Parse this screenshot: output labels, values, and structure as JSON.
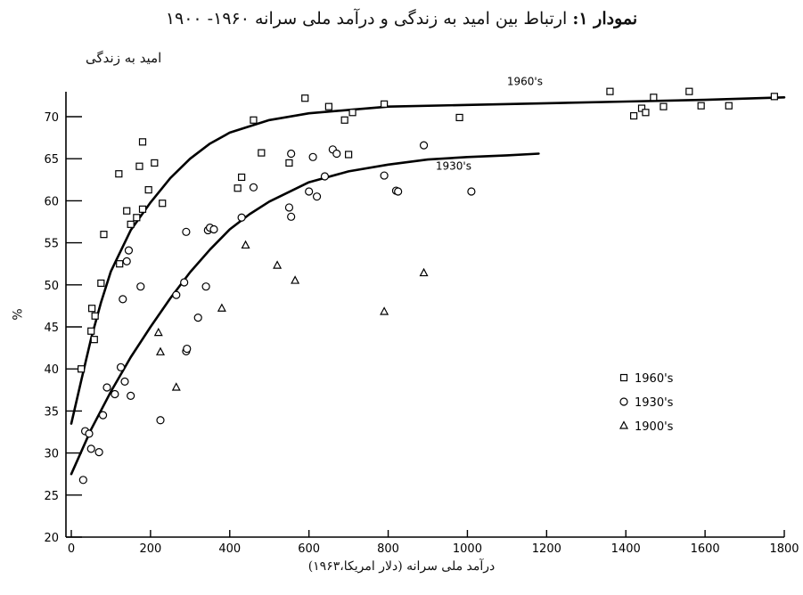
{
  "header": {
    "title_bold": "نمودار ۱:",
    "title_rest": " ارتباط بین امید به زندگی و درآمد ملی سرانه ۱۹۶۰- ۱۹۰۰"
  },
  "chart_data": {
    "type": "scatter",
    "ylabel": "امید به زندگی",
    "xlabel": "درآمد ملی سرانه (دلار امریکا،۱۹۶۳)",
    "yunit": "%",
    "xlim": [
      0,
      1800
    ],
    "ylim": [
      20,
      75
    ],
    "x_ticks": [
      0,
      200,
      400,
      600,
      800,
      1000,
      1200,
      1400,
      1600,
      1800
    ],
    "y_ticks": [
      20,
      25,
      30,
      35,
      40,
      45,
      50,
      55,
      60,
      65,
      70
    ],
    "legend_position": "right",
    "series": [
      {
        "name": "1960's",
        "marker": "square",
        "points": [
          [
            25,
            40
          ],
          [
            50,
            44.5
          ],
          [
            52,
            47.2
          ],
          [
            58,
            43.5
          ],
          [
            60,
            46.3
          ],
          [
            75,
            50.2
          ],
          [
            82,
            56
          ],
          [
            120,
            63.2
          ],
          [
            122,
            52.5
          ],
          [
            140,
            58.8
          ],
          [
            150,
            57.2
          ],
          [
            165,
            58
          ],
          [
            172,
            64.1
          ],
          [
            180,
            59
          ],
          [
            180,
            67
          ],
          [
            195,
            61.3
          ],
          [
            210,
            64.5
          ],
          [
            230,
            59.7
          ],
          [
            420,
            61.5
          ],
          [
            430,
            62.8
          ],
          [
            460,
            69.6
          ],
          [
            480,
            65.7
          ],
          [
            550,
            64.5
          ],
          [
            590,
            72.2
          ],
          [
            650,
            71.2
          ],
          [
            690,
            69.6
          ],
          [
            700,
            65.5
          ],
          [
            710,
            70.5
          ],
          [
            790,
            71.5
          ],
          [
            980,
            69.9
          ],
          [
            1360,
            73
          ],
          [
            1420,
            70.1
          ],
          [
            1440,
            71
          ],
          [
            1450,
            70.5
          ],
          [
            1470,
            72.3
          ],
          [
            1495,
            71.2
          ],
          [
            1560,
            73
          ],
          [
            1590,
            71.3
          ],
          [
            1660,
            71.3
          ],
          [
            1775,
            72.4
          ]
        ],
        "fit": [
          [
            0,
            33.5
          ],
          [
            25,
            38.6
          ],
          [
            50,
            43.6
          ],
          [
            75,
            47.9
          ],
          [
            100,
            51.6
          ],
          [
            150,
            56.5
          ],
          [
            200,
            59.8
          ],
          [
            250,
            62.7
          ],
          [
            300,
            65
          ],
          [
            350,
            66.8
          ],
          [
            400,
            68.1
          ],
          [
            500,
            69.6
          ],
          [
            600,
            70.4
          ],
          [
            700,
            70.8
          ],
          [
            800,
            71.2
          ],
          [
            1000,
            71.4
          ],
          [
            1200,
            71.6
          ],
          [
            1400,
            71.8
          ],
          [
            1600,
            72
          ],
          [
            1800,
            72.3
          ]
        ],
        "fit_label": "1960's"
      },
      {
        "name": "1930's",
        "marker": "circle",
        "points": [
          [
            30,
            26.8
          ],
          [
            35,
            32.6
          ],
          [
            45,
            32.3
          ],
          [
            50,
            30.5
          ],
          [
            70,
            30.1
          ],
          [
            80,
            34.5
          ],
          [
            90,
            37.8
          ],
          [
            110,
            37
          ],
          [
            125,
            40.2
          ],
          [
            130,
            48.3
          ],
          [
            135,
            38.5
          ],
          [
            140,
            52.8
          ],
          [
            145,
            54.1
          ],
          [
            150,
            36.8
          ],
          [
            175,
            49.8
          ],
          [
            225,
            33.9
          ],
          [
            265,
            48.8
          ],
          [
            285,
            50.3
          ],
          [
            290,
            56.3
          ],
          [
            290,
            42.1
          ],
          [
            292,
            42.4
          ],
          [
            320,
            46.1
          ],
          [
            340,
            49.8
          ],
          [
            345,
            56.5
          ],
          [
            350,
            56.8
          ],
          [
            360,
            56.6
          ],
          [
            430,
            58
          ],
          [
            460,
            61.6
          ],
          [
            550,
            59.2
          ],
          [
            555,
            58.1
          ],
          [
            555,
            65.6
          ],
          [
            600,
            61.1
          ],
          [
            610,
            65.2
          ],
          [
            620,
            60.5
          ],
          [
            640,
            62.9
          ],
          [
            660,
            66.1
          ],
          [
            670,
            65.6
          ],
          [
            790,
            63
          ],
          [
            820,
            61.2
          ],
          [
            825,
            61.1
          ],
          [
            890,
            66.6
          ],
          [
            1010,
            61.1
          ]
        ],
        "fit": [
          [
            0,
            27.5
          ],
          [
            50,
            32.8
          ],
          [
            100,
            37.3
          ],
          [
            150,
            41.4
          ],
          [
            200,
            45
          ],
          [
            250,
            48.4
          ],
          [
            300,
            51.5
          ],
          [
            350,
            54.2
          ],
          [
            400,
            56.6
          ],
          [
            450,
            58.4
          ],
          [
            500,
            59.9
          ],
          [
            600,
            62.2
          ],
          [
            700,
            63.5
          ],
          [
            800,
            64.3
          ],
          [
            900,
            64.9
          ],
          [
            1000,
            65.2
          ],
          [
            1100,
            65.4
          ],
          [
            1180,
            65.6
          ]
        ],
        "fit_label": "1930's"
      },
      {
        "name": "1900's",
        "marker": "triangle",
        "points": [
          [
            220,
            44.3
          ],
          [
            225,
            42
          ],
          [
            265,
            37.8
          ],
          [
            380,
            47.2
          ],
          [
            440,
            54.7
          ],
          [
            520,
            52.3
          ],
          [
            565,
            50.5
          ],
          [
            790,
            46.8
          ],
          [
            890,
            51.4
          ]
        ]
      }
    ]
  }
}
